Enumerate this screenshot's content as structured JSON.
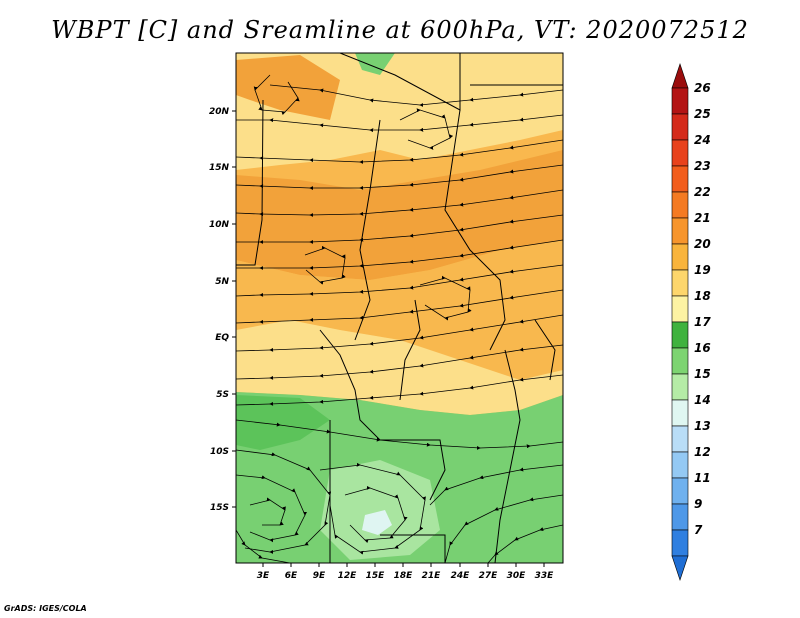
{
  "title": "WBPT [C] and Sreamline at 600hPa, VT: 2020072512",
  "credit": "GrADS: IGES/COLA",
  "map": {
    "lon_labels": [
      "3E",
      "6E",
      "9E",
      "12E",
      "15E",
      "18E",
      "21E",
      "24E",
      "27E",
      "30E",
      "33E"
    ],
    "lat_labels": [
      "20N",
      "15N",
      "10N",
      "5N",
      "EQ",
      "5S",
      "10S",
      "15S"
    ],
    "region_colors": {
      "orange_dark": "#f2a23a",
      "orange": "#f8b84e",
      "yellow": "#fcdf8a",
      "light_yellow": "#fdf3b4",
      "green_dark": "#5cc35a",
      "green": "#78d072",
      "light_green": "#a9e5a0",
      "pale_cyan": "#dff5f2"
    }
  },
  "colorbar": {
    "labels": [
      "26",
      "25",
      "24",
      "23",
      "22",
      "21",
      "20",
      "19",
      "18",
      "17",
      "16",
      "15",
      "14",
      "13",
      "12",
      "11",
      "9",
      "7"
    ],
    "colors": [
      "#b31414",
      "#d42a1a",
      "#e8421c",
      "#f25d1c",
      "#f47a22",
      "#f7952c",
      "#f9b43c",
      "#fdd66c",
      "#fdf3a3",
      "#3fb23e",
      "#7dd471",
      "#b5eca6",
      "#e0f7f2",
      "#b9ddf7",
      "#94c9f4",
      "#6fb1ef",
      "#4e98e8",
      "#2f7fe0"
    ],
    "top_arrow_color": "#9a0d0d",
    "bottom_arrow_color": "#1f6ed4"
  }
}
